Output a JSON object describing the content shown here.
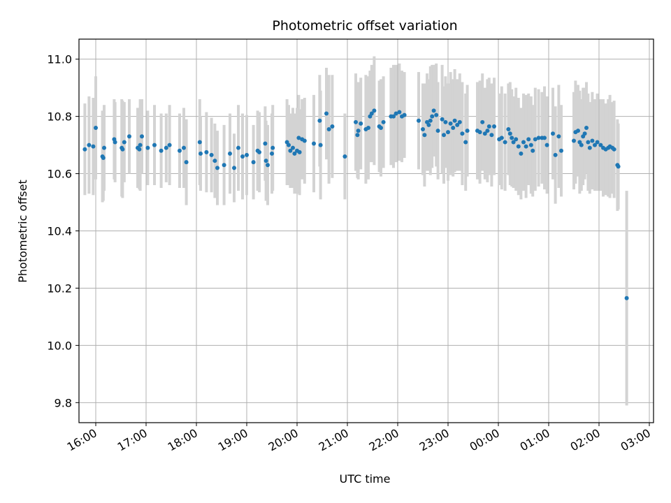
{
  "chart_data": {
    "type": "scatter",
    "title": "Photometric offset variation",
    "xlabel": "UTC time",
    "ylabel": "Photometric offset",
    "x_axis": "time",
    "xlim": [
      "15:40",
      "27:05"
    ],
    "ylim": [
      9.73,
      11.07
    ],
    "grid": true,
    "x_ticks": [
      {
        "t": "16:00",
        "label": "16:00"
      },
      {
        "t": "17:00",
        "label": "17:00"
      },
      {
        "t": "18:00",
        "label": "18:00"
      },
      {
        "t": "19:00",
        "label": "19:00"
      },
      {
        "t": "20:00",
        "label": "20:00"
      },
      {
        "t": "21:00",
        "label": "21:00"
      },
      {
        "t": "22:00",
        "label": "22:00"
      },
      {
        "t": "23:00",
        "label": "23:00"
      },
      {
        "t": "24:00",
        "label": "00:00"
      },
      {
        "t": "25:00",
        "label": "01:00"
      },
      {
        "t": "26:00",
        "label": "02:00"
      },
      {
        "t": "27:00",
        "label": "03:00"
      }
    ],
    "y_ticks": [
      9.8,
      10.0,
      10.2,
      10.4,
      10.6,
      10.8,
      11.0
    ],
    "y_tick_labels": [
      "9.8",
      "10.0",
      "10.2",
      "10.4",
      "10.6",
      "10.8",
      "11.0"
    ],
    "marker_color": "#1f77b4",
    "errorbar_color": "#d3d3d3",
    "points": [
      {
        "t": "15:47",
        "y": 10.685,
        "err": 0.16
      },
      {
        "t": "15:52",
        "y": 10.7,
        "err": 0.17
      },
      {
        "t": "15:57",
        "y": 10.695,
        "err": 0.17
      },
      {
        "t": "16:00",
        "y": 10.76,
        "err": 0.18
      },
      {
        "t": "16:08",
        "y": 10.66,
        "err": 0.16
      },
      {
        "t": "16:09",
        "y": 10.655,
        "err": 0.15
      },
      {
        "t": "16:10",
        "y": 10.69,
        "err": 0.15
      },
      {
        "t": "16:22",
        "y": 10.72,
        "err": 0.14
      },
      {
        "t": "16:23",
        "y": 10.71,
        "err": 0.14
      },
      {
        "t": "16:31",
        "y": 10.69,
        "err": 0.17
      },
      {
        "t": "16:32",
        "y": 10.685,
        "err": 0.17
      },
      {
        "t": "16:34",
        "y": 10.71,
        "err": 0.14
      },
      {
        "t": "16:40",
        "y": 10.73,
        "err": 0.13
      },
      {
        "t": "16:50",
        "y": 10.69,
        "err": 0.14
      },
      {
        "t": "16:52",
        "y": 10.685,
        "err": 0.14
      },
      {
        "t": "16:53",
        "y": 10.7,
        "err": 0.16
      },
      {
        "t": "16:55",
        "y": 10.73,
        "err": 0.13
      },
      {
        "t": "17:02",
        "y": 10.69,
        "err": 0.13
      },
      {
        "t": "17:10",
        "y": 10.7,
        "err": 0.14
      },
      {
        "t": "17:18",
        "y": 10.68,
        "err": 0.13
      },
      {
        "t": "17:24",
        "y": 10.69,
        "err": 0.12
      },
      {
        "t": "17:28",
        "y": 10.7,
        "err": 0.14
      },
      {
        "t": "17:40",
        "y": 10.68,
        "err": 0.13
      },
      {
        "t": "17:45",
        "y": 10.69,
        "err": 0.14
      },
      {
        "t": "17:48",
        "y": 10.64,
        "err": 0.15
      },
      {
        "t": "18:04",
        "y": 10.71,
        "err": 0.15
      },
      {
        "t": "18:05",
        "y": 10.67,
        "err": 0.13
      },
      {
        "t": "18:12",
        "y": 10.675,
        "err": 0.14
      },
      {
        "t": "18:18",
        "y": 10.665,
        "err": 0.13
      },
      {
        "t": "18:22",
        "y": 10.645,
        "err": 0.13
      },
      {
        "t": "18:25",
        "y": 10.62,
        "err": 0.13
      },
      {
        "t": "18:33",
        "y": 10.63,
        "err": 0.14
      },
      {
        "t": "18:40",
        "y": 10.67,
        "err": 0.14
      },
      {
        "t": "18:45",
        "y": 10.62,
        "err": 0.12
      },
      {
        "t": "18:50",
        "y": 10.69,
        "err": 0.15
      },
      {
        "t": "18:55",
        "y": 10.66,
        "err": 0.15
      },
      {
        "t": "19:00",
        "y": 10.665,
        "err": 0.14
      },
      {
        "t": "19:08",
        "y": 10.64,
        "err": 0.13
      },
      {
        "t": "19:13",
        "y": 10.68,
        "err": 0.14
      },
      {
        "t": "19:15",
        "y": 10.675,
        "err": 0.14
      },
      {
        "t": "19:22",
        "y": 10.705,
        "err": 0.13
      },
      {
        "t": "19:23",
        "y": 10.645,
        "err": 0.14
      },
      {
        "t": "19:25",
        "y": 10.63,
        "err": 0.14
      },
      {
        "t": "19:30",
        "y": 10.67,
        "err": 0.14
      },
      {
        "t": "19:31",
        "y": 10.69,
        "err": 0.15
      },
      {
        "t": "19:48",
        "y": 10.71,
        "err": 0.15
      },
      {
        "t": "19:50",
        "y": 10.7,
        "err": 0.14
      },
      {
        "t": "19:52",
        "y": 10.68,
        "err": 0.13
      },
      {
        "t": "19:55",
        "y": 10.69,
        "err": 0.14
      },
      {
        "t": "19:57",
        "y": 10.67,
        "err": 0.14
      },
      {
        "t": "20:00",
        "y": 10.68,
        "err": 0.15
      },
      {
        "t": "20:02",
        "y": 10.725,
        "err": 0.15
      },
      {
        "t": "20:03",
        "y": 10.675,
        "err": 0.15
      },
      {
        "t": "20:06",
        "y": 10.72,
        "err": 0.14
      },
      {
        "t": "20:09",
        "y": 10.715,
        "err": 0.15
      },
      {
        "t": "20:20",
        "y": 10.705,
        "err": 0.17
      },
      {
        "t": "20:27",
        "y": 10.785,
        "err": 0.16
      },
      {
        "t": "20:28",
        "y": 10.7,
        "err": 0.19
      },
      {
        "t": "20:35",
        "y": 10.81,
        "err": 0.16
      },
      {
        "t": "20:38",
        "y": 10.755,
        "err": 0.19
      },
      {
        "t": "20:42",
        "y": 10.765,
        "err": 0.18
      },
      {
        "t": "20:57",
        "y": 10.66,
        "err": 0.15
      },
      {
        "t": "21:10",
        "y": 10.78,
        "err": 0.17
      },
      {
        "t": "21:12",
        "y": 10.735,
        "err": 0.15
      },
      {
        "t": "21:13",
        "y": 10.75,
        "err": 0.17
      },
      {
        "t": "21:16",
        "y": 10.775,
        "err": 0.16
      },
      {
        "t": "21:22",
        "y": 10.755,
        "err": 0.19
      },
      {
        "t": "21:25",
        "y": 10.76,
        "err": 0.18
      },
      {
        "t": "21:27",
        "y": 10.8,
        "err": 0.16
      },
      {
        "t": "21:29",
        "y": 10.81,
        "err": 0.17
      },
      {
        "t": "21:32",
        "y": 10.82,
        "err": 0.19
      },
      {
        "t": "21:38",
        "y": 10.765,
        "err": 0.16
      },
      {
        "t": "21:40",
        "y": 10.76,
        "err": 0.17
      },
      {
        "t": "21:43",
        "y": 10.78,
        "err": 0.16
      },
      {
        "t": "21:52",
        "y": 10.8,
        "err": 0.17
      },
      {
        "t": "21:55",
        "y": 10.8,
        "err": 0.18
      },
      {
        "t": "21:58",
        "y": 10.81,
        "err": 0.17
      },
      {
        "t": "22:02",
        "y": 10.815,
        "err": 0.17
      },
      {
        "t": "22:05",
        "y": 10.8,
        "err": 0.16
      },
      {
        "t": "22:08",
        "y": 10.805,
        "err": 0.15
      },
      {
        "t": "22:25",
        "y": 10.785,
        "err": 0.17
      },
      {
        "t": "22:30",
        "y": 10.755,
        "err": 0.16
      },
      {
        "t": "22:32",
        "y": 10.735,
        "err": 0.18
      },
      {
        "t": "22:35",
        "y": 10.78,
        "err": 0.17
      },
      {
        "t": "22:37",
        "y": 10.77,
        "err": 0.16
      },
      {
        "t": "22:39",
        "y": 10.785,
        "err": 0.19
      },
      {
        "t": "22:41",
        "y": 10.8,
        "err": 0.18
      },
      {
        "t": "22:43",
        "y": 10.82,
        "err": 0.16
      },
      {
        "t": "22:46",
        "y": 10.805,
        "err": 0.18
      },
      {
        "t": "22:48",
        "y": 10.75,
        "err": 0.17
      },
      {
        "t": "22:53",
        "y": 10.79,
        "err": 0.19
      },
      {
        "t": "22:55",
        "y": 10.735,
        "err": 0.17
      },
      {
        "t": "22:57",
        "y": 10.78,
        "err": 0.16
      },
      {
        "t": "23:00",
        "y": 10.745,
        "err": 0.17
      },
      {
        "t": "23:03",
        "y": 10.775,
        "err": 0.18
      },
      {
        "t": "23:06",
        "y": 10.76,
        "err": 0.17
      },
      {
        "t": "23:08",
        "y": 10.785,
        "err": 0.18
      },
      {
        "t": "23:11",
        "y": 10.77,
        "err": 0.16
      },
      {
        "t": "23:14",
        "y": 10.78,
        "err": 0.17
      },
      {
        "t": "23:17",
        "y": 10.74,
        "err": 0.18
      },
      {
        "t": "23:21",
        "y": 10.71,
        "err": 0.17
      },
      {
        "t": "23:23",
        "y": 10.75,
        "err": 0.16
      },
      {
        "t": "23:35",
        "y": 10.75,
        "err": 0.17
      },
      {
        "t": "23:38",
        "y": 10.745,
        "err": 0.18
      },
      {
        "t": "23:41",
        "y": 10.78,
        "err": 0.17
      },
      {
        "t": "23:44",
        "y": 10.74,
        "err": 0.16
      },
      {
        "t": "23:47",
        "y": 10.75,
        "err": 0.18
      },
      {
        "t": "23:49",
        "y": 10.765,
        "err": 0.17
      },
      {
        "t": "23:52",
        "y": 10.735,
        "err": 0.18
      },
      {
        "t": "23:55",
        "y": 10.765,
        "err": 0.17
      },
      {
        "t": "24:01",
        "y": 10.72,
        "err": 0.16
      },
      {
        "t": "24:04",
        "y": 10.725,
        "err": 0.18
      },
      {
        "t": "24:08",
        "y": 10.71,
        "err": 0.17
      },
      {
        "t": "24:12",
        "y": 10.755,
        "err": 0.16
      },
      {
        "t": "24:14",
        "y": 10.74,
        "err": 0.18
      },
      {
        "t": "24:16",
        "y": 10.725,
        "err": 0.17
      },
      {
        "t": "24:18",
        "y": 10.71,
        "err": 0.16
      },
      {
        "t": "24:21",
        "y": 10.72,
        "err": 0.18
      },
      {
        "t": "24:24",
        "y": 10.695,
        "err": 0.17
      },
      {
        "t": "24:27",
        "y": 10.67,
        "err": 0.16
      },
      {
        "t": "24:30",
        "y": 10.71,
        "err": 0.17
      },
      {
        "t": "24:33",
        "y": 10.695,
        "err": 0.18
      },
      {
        "t": "24:36",
        "y": 10.72,
        "err": 0.16
      },
      {
        "t": "24:39",
        "y": 10.7,
        "err": 0.17
      },
      {
        "t": "24:41",
        "y": 10.68,
        "err": 0.16
      },
      {
        "t": "24:44",
        "y": 10.72,
        "err": 0.18
      },
      {
        "t": "24:48",
        "y": 10.725,
        "err": 0.17
      },
      {
        "t": "24:52",
        "y": 10.725,
        "err": 0.16
      },
      {
        "t": "24:55",
        "y": 10.725,
        "err": 0.18
      },
      {
        "t": "24:58",
        "y": 10.7,
        "err": 0.17
      },
      {
        "t": "25:05",
        "y": 10.74,
        "err": 0.16
      },
      {
        "t": "25:08",
        "y": 10.665,
        "err": 0.17
      },
      {
        "t": "25:12",
        "y": 10.73,
        "err": 0.18
      },
      {
        "t": "25:15",
        "y": 10.68,
        "err": 0.16
      },
      {
        "t": "25:30",
        "y": 10.715,
        "err": 0.17
      },
      {
        "t": "25:32",
        "y": 10.745,
        "err": 0.18
      },
      {
        "t": "25:35",
        "y": 10.75,
        "err": 0.16
      },
      {
        "t": "25:37",
        "y": 10.71,
        "err": 0.18
      },
      {
        "t": "25:39",
        "y": 10.7,
        "err": 0.16
      },
      {
        "t": "25:41",
        "y": 10.73,
        "err": 0.17
      },
      {
        "t": "25:43",
        "y": 10.74,
        "err": 0.16
      },
      {
        "t": "25:45",
        "y": 10.76,
        "err": 0.16
      },
      {
        "t": "25:47",
        "y": 10.71,
        "err": 0.17
      },
      {
        "t": "25:49",
        "y": 10.69,
        "err": 0.16
      },
      {
        "t": "25:52",
        "y": 10.715,
        "err": 0.17
      },
      {
        "t": "25:55",
        "y": 10.7,
        "err": 0.16
      },
      {
        "t": "25:58",
        "y": 10.71,
        "err": 0.17
      },
      {
        "t": "26:02",
        "y": 10.7,
        "err": 0.16
      },
      {
        "t": "26:05",
        "y": 10.69,
        "err": 0.17
      },
      {
        "t": "26:08",
        "y": 10.685,
        "err": 0.16
      },
      {
        "t": "26:11",
        "y": 10.69,
        "err": 0.17
      },
      {
        "t": "26:13",
        "y": 10.695,
        "err": 0.18
      },
      {
        "t": "26:16",
        "y": 10.69,
        "err": 0.16
      },
      {
        "t": "26:18",
        "y": 10.685,
        "err": 0.17
      },
      {
        "t": "26:22",
        "y": 10.63,
        "err": 0.16
      },
      {
        "t": "26:23",
        "y": 10.625,
        "err": 0.15
      },
      {
        "t": "26:33",
        "y": 10.165,
        "err": 0.375
      }
    ]
  }
}
